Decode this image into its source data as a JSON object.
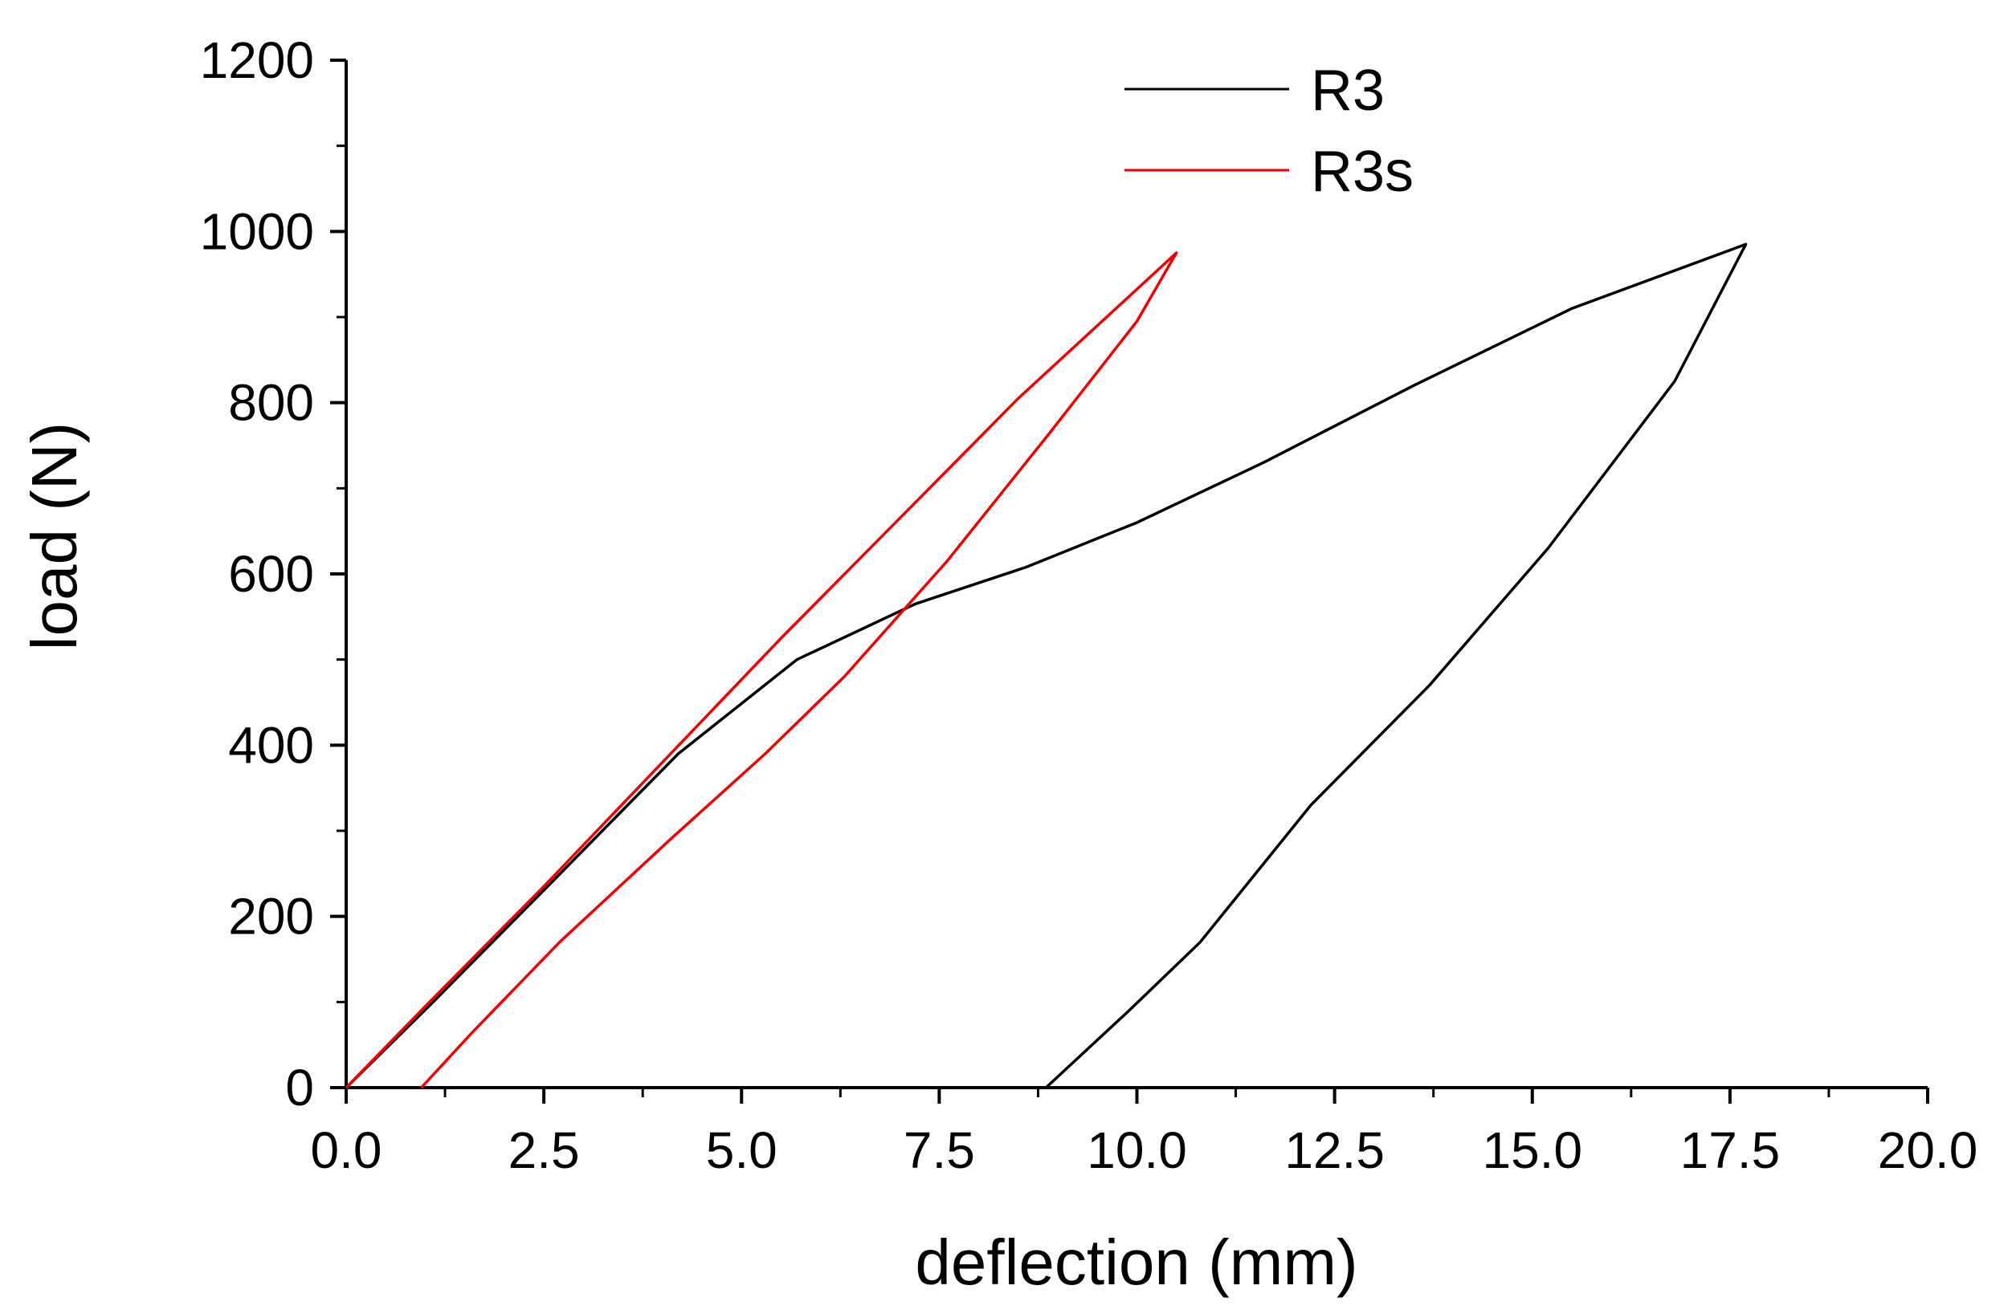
{
  "chart_data": {
    "type": "line",
    "title": "",
    "xlabel": "deflection (mm)",
    "ylabel": "load (N)",
    "xlim": [
      0,
      20
    ],
    "ylim": [
      0,
      1200
    ],
    "x_ticks": [
      0,
      2.5,
      5,
      7.5,
      10,
      12.5,
      15,
      17.5,
      20
    ],
    "x_tick_labels": [
      "0.0",
      "2.5",
      "5.0",
      "7.5",
      "10.0",
      "12.5",
      "15.0",
      "17.5",
      "20.0"
    ],
    "y_ticks": [
      0,
      200,
      400,
      600,
      800,
      1000,
      1200
    ],
    "y_tick_labels": [
      "0",
      "200",
      "400",
      "600",
      "800",
      "1000",
      "1200"
    ],
    "grid": false,
    "legend_position": "top-right",
    "series": [
      {
        "name": "R3",
        "color": "#000000",
        "x": [
          0,
          1.1,
          2.6,
          4.2,
          5.7,
          7.2,
          8.6,
          10.0,
          11.6,
          13.5,
          15.5,
          17.7,
          16.8,
          15.2,
          13.7,
          12.2,
          10.8,
          9.9,
          8.85
        ],
        "y": [
          0,
          100,
          240,
          390,
          500,
          565,
          608,
          660,
          730,
          820,
          910,
          985,
          825,
          630,
          470,
          330,
          170,
          90,
          0
        ]
      },
      {
        "name": "R3s",
        "color": "#ee0000",
        "x": [
          0,
          1.0,
          2.5,
          4.0,
          5.5,
          7.0,
          8.5,
          10.5,
          10.0,
          8.9,
          7.6,
          6.3,
          5.3,
          4.1,
          2.7,
          1.6,
          0.95
        ],
        "y": [
          0,
          95,
          235,
          380,
          525,
          665,
          805,
          975,
          895,
          765,
          615,
          480,
          390,
          290,
          170,
          65,
          0
        ]
      }
    ]
  }
}
